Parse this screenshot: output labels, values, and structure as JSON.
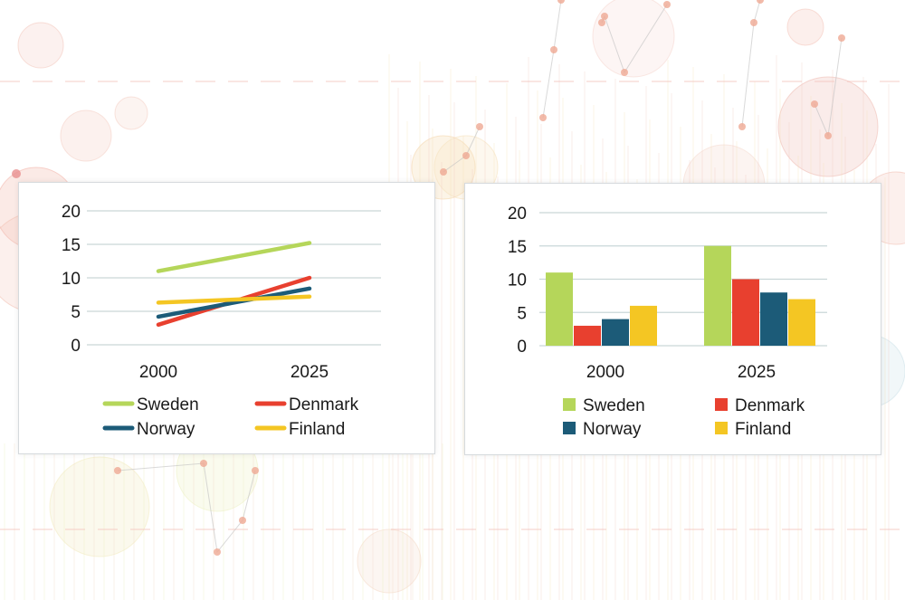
{
  "chart_data": [
    {
      "type": "line",
      "categories": [
        "2000",
        "2025"
      ],
      "ylim": [
        0,
        20
      ],
      "yticks": [
        "0",
        "5",
        "10",
        "15",
        "20"
      ],
      "grid": true,
      "legend_position": "bottom",
      "series": [
        {
          "name": "Sweden",
          "color": "#b5d65a",
          "values": [
            11,
            15.2
          ]
        },
        {
          "name": "Denmark",
          "color": "#e8402f",
          "values": [
            3,
            10
          ]
        },
        {
          "name": "Norway",
          "color": "#1c5b78",
          "values": [
            4.2,
            8.4
          ]
        },
        {
          "name": "Finland",
          "color": "#f4c623",
          "values": [
            6.3,
            7.2
          ]
        }
      ]
    },
    {
      "type": "bar",
      "categories": [
        "2000",
        "2025"
      ],
      "ylim": [
        0,
        20
      ],
      "yticks": [
        "0",
        "5",
        "10",
        "15",
        "20"
      ],
      "grid": true,
      "legend_position": "bottom",
      "series": [
        {
          "name": "Sweden",
          "color": "#b5d65a",
          "values": [
            11,
            15
          ]
        },
        {
          "name": "Denmark",
          "color": "#e8402f",
          "values": [
            3,
            10
          ]
        },
        {
          "name": "Norway",
          "color": "#1c5b78",
          "values": [
            4,
            8
          ]
        },
        {
          "name": "Finland",
          "color": "#f4c623",
          "values": [
            6,
            7
          ]
        }
      ]
    }
  ]
}
